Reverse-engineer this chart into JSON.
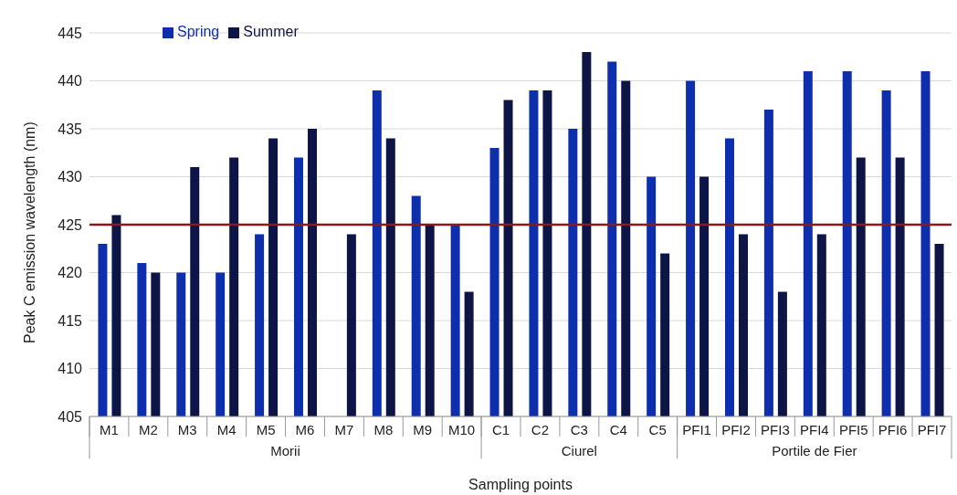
{
  "chart_data": {
    "type": "bar",
    "xlabel": "Sampling points",
    "ylabel": "Peak C emission wavelength (nm)",
    "categories": [
      "M1",
      "M2",
      "M3",
      "M4",
      "M5",
      "M6",
      "M7",
      "M8",
      "M9",
      "M10",
      "C1",
      "C2",
      "C3",
      "C4",
      "C5",
      "PFI1",
      "PFI2",
      "PFI3",
      "PFI4",
      "PFI5",
      "PFI6",
      "PFI7"
    ],
    "series": [
      {
        "name": "Spring",
        "color": "#0d2fae",
        "values": [
          423,
          421,
          420,
          420,
          424,
          432,
          null,
          439,
          428,
          425,
          433,
          439,
          435,
          442,
          430,
          440,
          434,
          437,
          441,
          441,
          439,
          441
        ]
      },
      {
        "name": "Summer",
        "color": "#0d1446",
        "values": [
          426,
          420,
          431,
          432,
          434,
          435,
          424,
          434,
          425,
          418,
          438,
          439,
          443,
          440,
          422,
          430,
          424,
          418,
          424,
          432,
          432,
          423
        ]
      }
    ],
    "ylim": [
      405,
      445
    ],
    "yticks": [
      405,
      410,
      415,
      420,
      425,
      430,
      435,
      440,
      445
    ],
    "grid": "y",
    "legend": "top left",
    "ref_lines": [
      {
        "axis": "y",
        "value": 425,
        "color": "#8b1a1a"
      }
    ],
    "annotations": [
      "Morii",
      "Ciurel",
      "Portile de Fier"
    ]
  }
}
